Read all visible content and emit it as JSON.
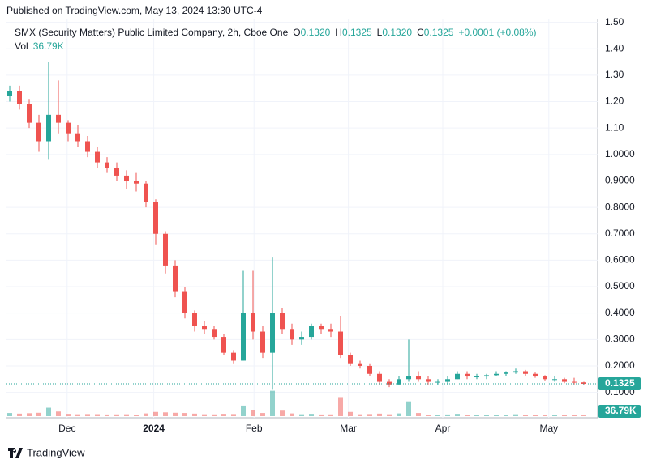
{
  "header": {
    "published": "Published on TradingView.com, May 13, 2024 13:30 UTC-4",
    "footer": "TradingView"
  },
  "chart_data": {
    "type": "candlestick",
    "legend": {
      "symbol": "SMX (Security Matters) Public Limited Company, 2h, Cboe One",
      "ohlc": [
        {
          "label": "O",
          "value": "0.1320"
        },
        {
          "label": "H",
          "value": "0.1325"
        },
        {
          "label": "L",
          "value": "0.1320"
        },
        {
          "label": "C",
          "value": "0.1325"
        }
      ],
      "change": "+0.0001 (+0.08%)",
      "vol_label": "Vol",
      "vol_value": "36.79K"
    },
    "up_color": "#26a69a",
    "down_color": "#ef5350",
    "ylim": [
      0.01,
      1.56
    ],
    "yticks": [
      {
        "value": 0.1,
        "label": "0.1000"
      },
      {
        "value": 0.2,
        "label": "0.2000"
      },
      {
        "value": 0.3,
        "label": "0.3000"
      },
      {
        "value": 0.4,
        "label": "0.4000"
      },
      {
        "value": 0.5,
        "label": "0.5000"
      },
      {
        "value": 0.6,
        "label": "0.6000"
      },
      {
        "value": 0.7,
        "label": "0.7000"
      },
      {
        "value": 0.8,
        "label": "0.8000"
      },
      {
        "value": 0.9,
        "label": "0.9000"
      },
      {
        "value": 1.0,
        "label": "1.0000"
      },
      {
        "value": 1.1,
        "label": "1.10"
      },
      {
        "value": 1.2,
        "label": "1.20"
      },
      {
        "value": 1.3,
        "label": "1.30"
      },
      {
        "value": 1.4,
        "label": "1.40"
      },
      {
        "value": 1.5,
        "label": "1.50"
      }
    ],
    "xticks": [
      {
        "value": 5.9,
        "label": "Dec"
      },
      {
        "value": 14.8,
        "label": "2024"
      },
      {
        "value": 25.1,
        "label": "Feb"
      },
      {
        "value": 34.8,
        "label": "Mar"
      },
      {
        "value": 44.5,
        "label": "Apr"
      },
      {
        "value": 55.4,
        "label": "May"
      }
    ],
    "vol_lim": [
      0,
      1300
    ],
    "last_volume_label": "36.79K",
    "grid": true,
    "candles": [
      {
        "o": 1.22,
        "h": 1.26,
        "l": 1.2,
        "c": 1.24,
        "v": 150
      },
      {
        "o": 1.24,
        "h": 1.26,
        "l": 1.17,
        "c": 1.19,
        "v": 120
      },
      {
        "o": 1.19,
        "h": 1.21,
        "l": 1.1,
        "c": 1.12,
        "v": 140
      },
      {
        "o": 1.12,
        "h": 1.15,
        "l": 1.01,
        "c": 1.05,
        "v": 160
      },
      {
        "o": 1.05,
        "h": 1.35,
        "l": 0.98,
        "c": 1.15,
        "v": 400
      },
      {
        "o": 1.15,
        "h": 1.28,
        "l": 1.08,
        "c": 1.12,
        "v": 220
      },
      {
        "o": 1.12,
        "h": 1.13,
        "l": 1.05,
        "c": 1.08,
        "v": 110
      },
      {
        "o": 1.08,
        "h": 1.11,
        "l": 1.03,
        "c": 1.05,
        "v": 90
      },
      {
        "o": 1.05,
        "h": 1.07,
        "l": 0.99,
        "c": 1.01,
        "v": 100
      },
      {
        "o": 1.01,
        "h": 1.03,
        "l": 0.95,
        "c": 0.97,
        "v": 95
      },
      {
        "o": 0.97,
        "h": 0.99,
        "l": 0.93,
        "c": 0.95,
        "v": 80
      },
      {
        "o": 0.95,
        "h": 0.97,
        "l": 0.9,
        "c": 0.92,
        "v": 85
      },
      {
        "o": 0.92,
        "h": 0.94,
        "l": 0.87,
        "c": 0.9,
        "v": 90
      },
      {
        "o": 0.9,
        "h": 0.93,
        "l": 0.86,
        "c": 0.89,
        "v": 75
      },
      {
        "o": 0.89,
        "h": 0.9,
        "l": 0.8,
        "c": 0.82,
        "v": 130
      },
      {
        "o": 0.82,
        "h": 0.83,
        "l": 0.66,
        "c": 0.7,
        "v": 200
      },
      {
        "o": 0.7,
        "h": 0.71,
        "l": 0.55,
        "c": 0.58,
        "v": 180
      },
      {
        "o": 0.58,
        "h": 0.6,
        "l": 0.46,
        "c": 0.48,
        "v": 160
      },
      {
        "o": 0.48,
        "h": 0.5,
        "l": 0.38,
        "c": 0.4,
        "v": 150
      },
      {
        "o": 0.4,
        "h": 0.41,
        "l": 0.33,
        "c": 0.35,
        "v": 120
      },
      {
        "o": 0.35,
        "h": 0.37,
        "l": 0.32,
        "c": 0.34,
        "v": 90
      },
      {
        "o": 0.34,
        "h": 0.35,
        "l": 0.3,
        "c": 0.31,
        "v": 85
      },
      {
        "o": 0.31,
        "h": 0.32,
        "l": 0.24,
        "c": 0.25,
        "v": 110
      },
      {
        "o": 0.25,
        "h": 0.26,
        "l": 0.21,
        "c": 0.22,
        "v": 100
      },
      {
        "o": 0.22,
        "h": 0.56,
        "l": 0.22,
        "c": 0.4,
        "v": 500
      },
      {
        "o": 0.4,
        "h": 0.56,
        "l": 0.3,
        "c": 0.33,
        "v": 300
      },
      {
        "o": 0.33,
        "h": 0.35,
        "l": 0.23,
        "c": 0.25,
        "v": 150
      },
      {
        "o": 0.25,
        "h": 0.61,
        "l": 0.11,
        "c": 0.4,
        "v": 1200
      },
      {
        "o": 0.4,
        "h": 0.42,
        "l": 0.32,
        "c": 0.34,
        "v": 260
      },
      {
        "o": 0.34,
        "h": 0.36,
        "l": 0.28,
        "c": 0.3,
        "v": 130
      },
      {
        "o": 0.3,
        "h": 0.33,
        "l": 0.28,
        "c": 0.31,
        "v": 90
      },
      {
        "o": 0.31,
        "h": 0.36,
        "l": 0.3,
        "c": 0.35,
        "v": 110
      },
      {
        "o": 0.35,
        "h": 0.36,
        "l": 0.32,
        "c": 0.34,
        "v": 80
      },
      {
        "o": 0.34,
        "h": 0.36,
        "l": 0.31,
        "c": 0.33,
        "v": 85
      },
      {
        "o": 0.33,
        "h": 0.39,
        "l": 0.23,
        "c": 0.24,
        "v": 900
      },
      {
        "o": 0.24,
        "h": 0.25,
        "l": 0.2,
        "c": 0.21,
        "v": 200
      },
      {
        "o": 0.21,
        "h": 0.22,
        "l": 0.19,
        "c": 0.2,
        "v": 90
      },
      {
        "o": 0.2,
        "h": 0.21,
        "l": 0.16,
        "c": 0.17,
        "v": 100
      },
      {
        "o": 0.17,
        "h": 0.18,
        "l": 0.13,
        "c": 0.14,
        "v": 120
      },
      {
        "o": 0.14,
        "h": 0.15,
        "l": 0.12,
        "c": 0.13,
        "v": 90
      },
      {
        "o": 0.13,
        "h": 0.16,
        "l": 0.13,
        "c": 0.15,
        "v": 130
      },
      {
        "o": 0.15,
        "h": 0.3,
        "l": 0.14,
        "c": 0.16,
        "v": 700
      },
      {
        "o": 0.16,
        "h": 0.18,
        "l": 0.14,
        "c": 0.15,
        "v": 150
      },
      {
        "o": 0.15,
        "h": 0.16,
        "l": 0.13,
        "c": 0.14,
        "v": 70
      },
      {
        "o": 0.14,
        "h": 0.15,
        "l": 0.13,
        "c": 0.14,
        "v": 60
      },
      {
        "o": 0.14,
        "h": 0.16,
        "l": 0.13,
        "c": 0.15,
        "v": 80
      },
      {
        "o": 0.15,
        "h": 0.18,
        "l": 0.15,
        "c": 0.17,
        "v": 110
      },
      {
        "o": 0.17,
        "h": 0.18,
        "l": 0.15,
        "c": 0.16,
        "v": 70
      },
      {
        "o": 0.16,
        "h": 0.17,
        "l": 0.15,
        "c": 0.16,
        "v": 55
      },
      {
        "o": 0.16,
        "h": 0.17,
        "l": 0.15,
        "c": 0.165,
        "v": 60
      },
      {
        "o": 0.165,
        "h": 0.18,
        "l": 0.16,
        "c": 0.17,
        "v": 75
      },
      {
        "o": 0.17,
        "h": 0.18,
        "l": 0.16,
        "c": 0.175,
        "v": 65
      },
      {
        "o": 0.175,
        "h": 0.19,
        "l": 0.17,
        "c": 0.18,
        "v": 90
      },
      {
        "o": 0.18,
        "h": 0.185,
        "l": 0.16,
        "c": 0.17,
        "v": 70
      },
      {
        "o": 0.17,
        "h": 0.175,
        "l": 0.155,
        "c": 0.16,
        "v": 55
      },
      {
        "o": 0.16,
        "h": 0.165,
        "l": 0.145,
        "c": 0.15,
        "v": 60
      },
      {
        "o": 0.15,
        "h": 0.16,
        "l": 0.14,
        "c": 0.15,
        "v": 50
      },
      {
        "o": 0.15,
        "h": 0.155,
        "l": 0.135,
        "c": 0.14,
        "v": 45
      },
      {
        "o": 0.14,
        "h": 0.155,
        "l": 0.13,
        "c": 0.138,
        "v": 60
      },
      {
        "o": 0.138,
        "h": 0.14,
        "l": 0.13,
        "c": 0.1325,
        "v": 37
      }
    ]
  }
}
